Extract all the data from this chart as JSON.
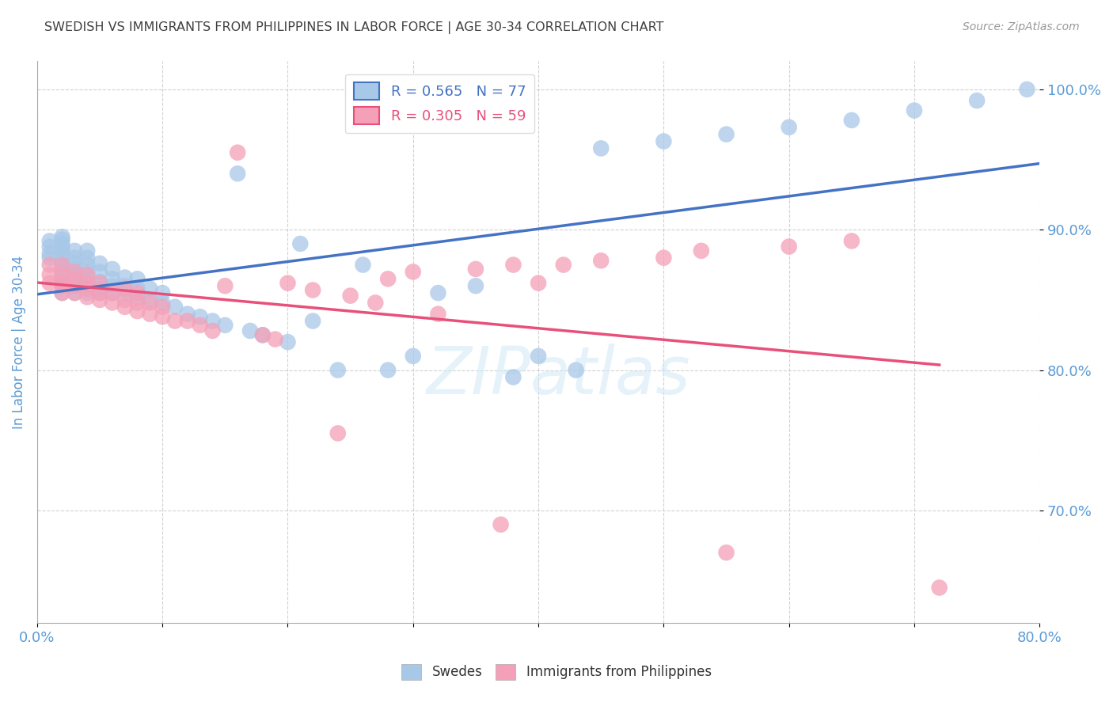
{
  "title": "SWEDISH VS IMMIGRANTS FROM PHILIPPINES IN LABOR FORCE | AGE 30-34 CORRELATION CHART",
  "source": "Source: ZipAtlas.com",
  "ylabel": "In Labor Force | Age 30-34",
  "xlim": [
    0.0,
    0.8
  ],
  "ylim": [
    0.62,
    1.02
  ],
  "yticks": [
    0.7,
    0.8,
    0.9,
    1.0
  ],
  "ytick_labels": [
    "70.0%",
    "80.0%",
    "90.0%",
    "100.0%"
  ],
  "watermark": "ZIPatlas",
  "blue_color": "#A8C8E8",
  "pink_color": "#F4A0B8",
  "blue_line_color": "#4472C4",
  "pink_line_color": "#E8507A",
  "legend_blue_label": "R = 0.565   N = 77",
  "legend_pink_label": "R = 0.305   N = 59",
  "swedes_label": "Swedes",
  "immigrants_label": "Immigrants from Philippines",
  "title_color": "#404040",
  "axis_label_color": "#5B9BD5",
  "tick_color": "#5B9BD5",
  "background_color": "#FFFFFF",
  "blue_scatter_x": [
    0.01,
    0.01,
    0.01,
    0.01,
    0.02,
    0.02,
    0.02,
    0.02,
    0.02,
    0.02,
    0.02,
    0.02,
    0.02,
    0.02,
    0.02,
    0.03,
    0.03,
    0.03,
    0.03,
    0.03,
    0.03,
    0.03,
    0.03,
    0.04,
    0.04,
    0.04,
    0.04,
    0.04,
    0.04,
    0.04,
    0.05,
    0.05,
    0.05,
    0.05,
    0.05,
    0.06,
    0.06,
    0.06,
    0.06,
    0.07,
    0.07,
    0.07,
    0.08,
    0.08,
    0.08,
    0.09,
    0.09,
    0.1,
    0.1,
    0.11,
    0.12,
    0.13,
    0.14,
    0.15,
    0.16,
    0.17,
    0.18,
    0.2,
    0.21,
    0.22,
    0.24,
    0.26,
    0.28,
    0.3,
    0.32,
    0.35,
    0.38,
    0.4,
    0.43,
    0.45,
    0.5,
    0.55,
    0.6,
    0.65,
    0.7,
    0.75,
    0.79
  ],
  "blue_scatter_y": [
    0.88,
    0.883,
    0.888,
    0.892,
    0.855,
    0.862,
    0.865,
    0.87,
    0.875,
    0.88,
    0.883,
    0.887,
    0.89,
    0.893,
    0.895,
    0.855,
    0.86,
    0.863,
    0.867,
    0.872,
    0.876,
    0.88,
    0.885,
    0.855,
    0.86,
    0.865,
    0.87,
    0.875,
    0.88,
    0.885,
    0.855,
    0.858,
    0.863,
    0.87,
    0.876,
    0.855,
    0.86,
    0.865,
    0.872,
    0.855,
    0.86,
    0.866,
    0.852,
    0.858,
    0.865,
    0.85,
    0.858,
    0.848,
    0.855,
    0.845,
    0.84,
    0.838,
    0.835,
    0.832,
    0.94,
    0.828,
    0.825,
    0.82,
    0.89,
    0.835,
    0.8,
    0.875,
    0.8,
    0.81,
    0.855,
    0.86,
    0.795,
    0.81,
    0.8,
    0.958,
    0.963,
    0.968,
    0.973,
    0.978,
    0.985,
    0.992,
    1.0
  ],
  "pink_scatter_x": [
    0.01,
    0.01,
    0.01,
    0.02,
    0.02,
    0.02,
    0.02,
    0.02,
    0.03,
    0.03,
    0.03,
    0.03,
    0.04,
    0.04,
    0.04,
    0.04,
    0.05,
    0.05,
    0.05,
    0.06,
    0.06,
    0.07,
    0.07,
    0.07,
    0.08,
    0.08,
    0.08,
    0.09,
    0.09,
    0.1,
    0.1,
    0.11,
    0.12,
    0.13,
    0.14,
    0.15,
    0.16,
    0.18,
    0.19,
    0.2,
    0.22,
    0.24,
    0.25,
    0.27,
    0.28,
    0.3,
    0.32,
    0.35,
    0.37,
    0.38,
    0.4,
    0.42,
    0.45,
    0.5,
    0.53,
    0.55,
    0.6,
    0.65,
    0.72
  ],
  "pink_scatter_y": [
    0.862,
    0.868,
    0.875,
    0.855,
    0.86,
    0.863,
    0.868,
    0.875,
    0.855,
    0.86,
    0.865,
    0.87,
    0.852,
    0.858,
    0.862,
    0.868,
    0.85,
    0.855,
    0.862,
    0.848,
    0.855,
    0.845,
    0.85,
    0.858,
    0.842,
    0.848,
    0.855,
    0.84,
    0.848,
    0.838,
    0.845,
    0.835,
    0.835,
    0.832,
    0.828,
    0.86,
    0.955,
    0.825,
    0.822,
    0.862,
    0.857,
    0.755,
    0.853,
    0.848,
    0.865,
    0.87,
    0.84,
    0.872,
    0.69,
    0.875,
    0.862,
    0.875,
    0.878,
    0.88,
    0.885,
    0.67,
    0.888,
    0.892,
    0.645
  ]
}
